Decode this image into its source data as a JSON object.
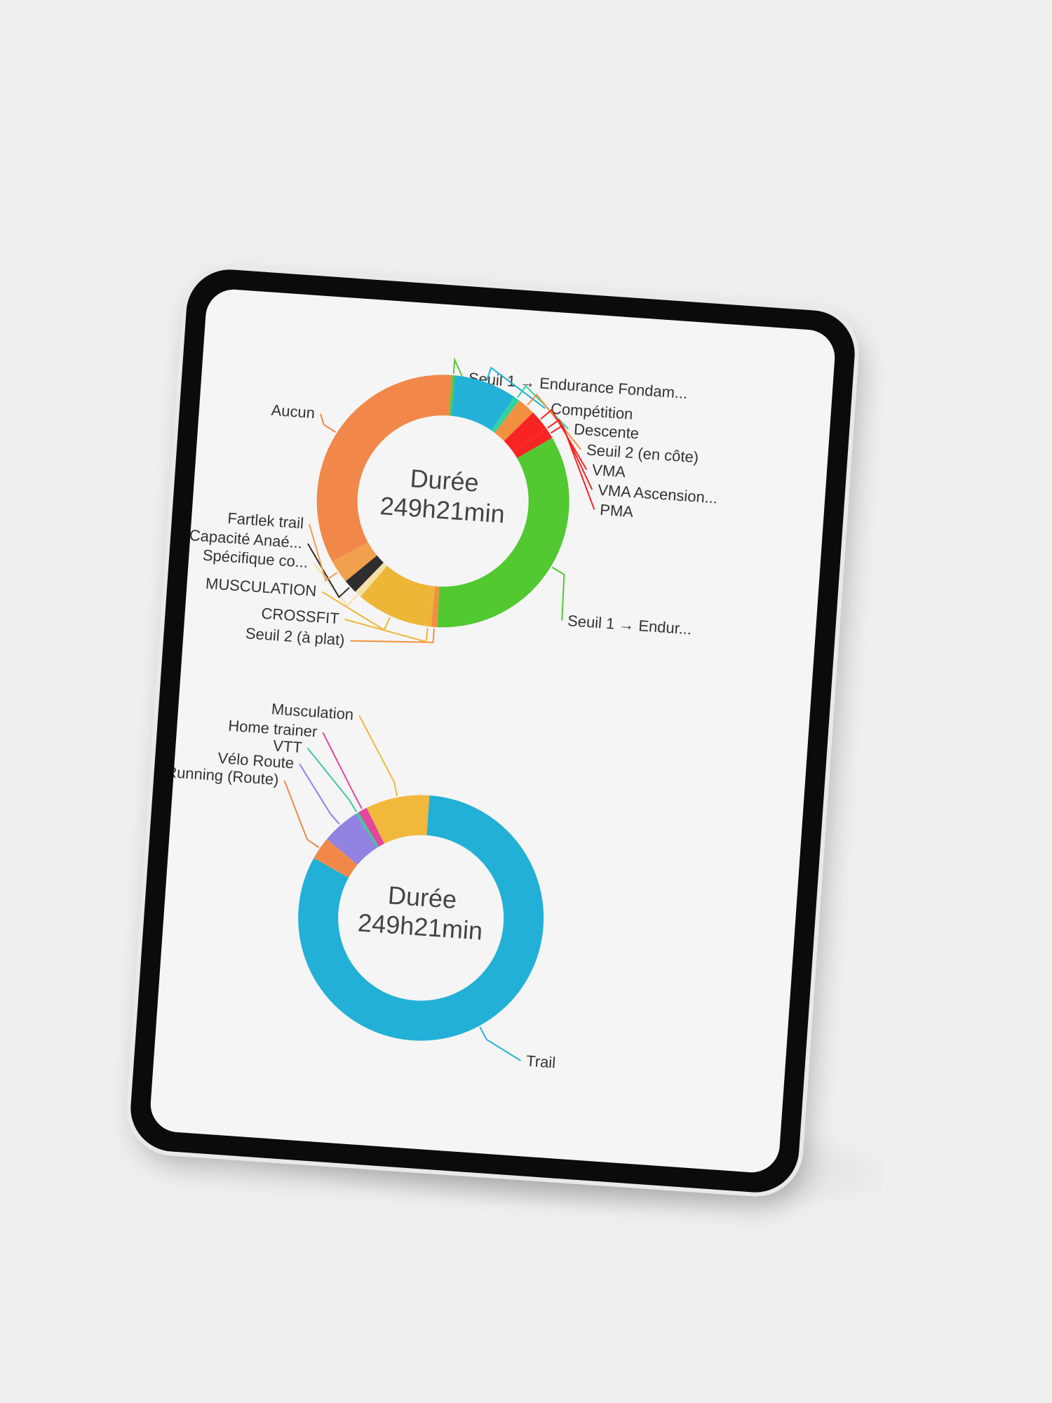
{
  "charts_meta": [
    {
      "center_title": "Durée",
      "center_value": "249h21min"
    },
    {
      "center_title": "Durée",
      "center_value": "249h21min"
    }
  ],
  "chart_data": [
    {
      "type": "pie",
      "slices": [
        {
          "label": "Seuil 1 → Endurance Fondam...",
          "value": 0.4,
          "color": "#58c93b"
        },
        {
          "label": "Compétition",
          "value": 8.0,
          "color": "#24b1d7"
        },
        {
          "label": "Descente",
          "value": 0.8,
          "color": "#2fd3a0"
        },
        {
          "label": "Seuil 2 (en côte)",
          "value": 2.3,
          "color": "#f1903f"
        },
        {
          "label": "VMA",
          "value": 2.5,
          "color": "#f82323"
        },
        {
          "label": "VMA Ascension...",
          "value": 0.3,
          "color": "#f82323"
        },
        {
          "label": "PMA",
          "value": 1.2,
          "color": "#f82323"
        },
        {
          "label": "Seuil 1 → Endur...",
          "value": 34.0,
          "color": "#52c831"
        },
        {
          "label": "Seuil 2 (à plat)",
          "value": 0.8,
          "color": "#f1903f"
        },
        {
          "label": "CROSSFIT",
          "value": 0.8,
          "color": "#f0b439"
        },
        {
          "label": "MUSCULATION",
          "value": 9.0,
          "color": "#eeb637"
        },
        {
          "label": "Spécifique co...",
          "value": 0.9,
          "color": "#f3e1a6"
        },
        {
          "label": "Capacité Anaé...",
          "value": 1.8,
          "color": "#2e2e2e"
        },
        {
          "label": "Fartlek trail",
          "value": 3.0,
          "color": "#f1a04d"
        },
        {
          "label": "Aucun",
          "value": 34.0,
          "color": "#f1884a"
        }
      ]
    },
    {
      "type": "pie",
      "slices": [
        {
          "label": "Trail",
          "value": 82.0,
          "color": "#22b0d6"
        },
        {
          "label": "Running (Route)",
          "value": 3.0,
          "color": "#f1884a"
        },
        {
          "label": "Vélo Route",
          "value": 5.0,
          "color": "#9282e2"
        },
        {
          "label": "VTT",
          "value": 0.4,
          "color": "#3dc8a0"
        },
        {
          "label": "Home trainer",
          "value": 1.2,
          "color": "#e2479c"
        },
        {
          "label": "Musculation",
          "value": 8.4,
          "color": "#f1b83c"
        }
      ]
    }
  ]
}
